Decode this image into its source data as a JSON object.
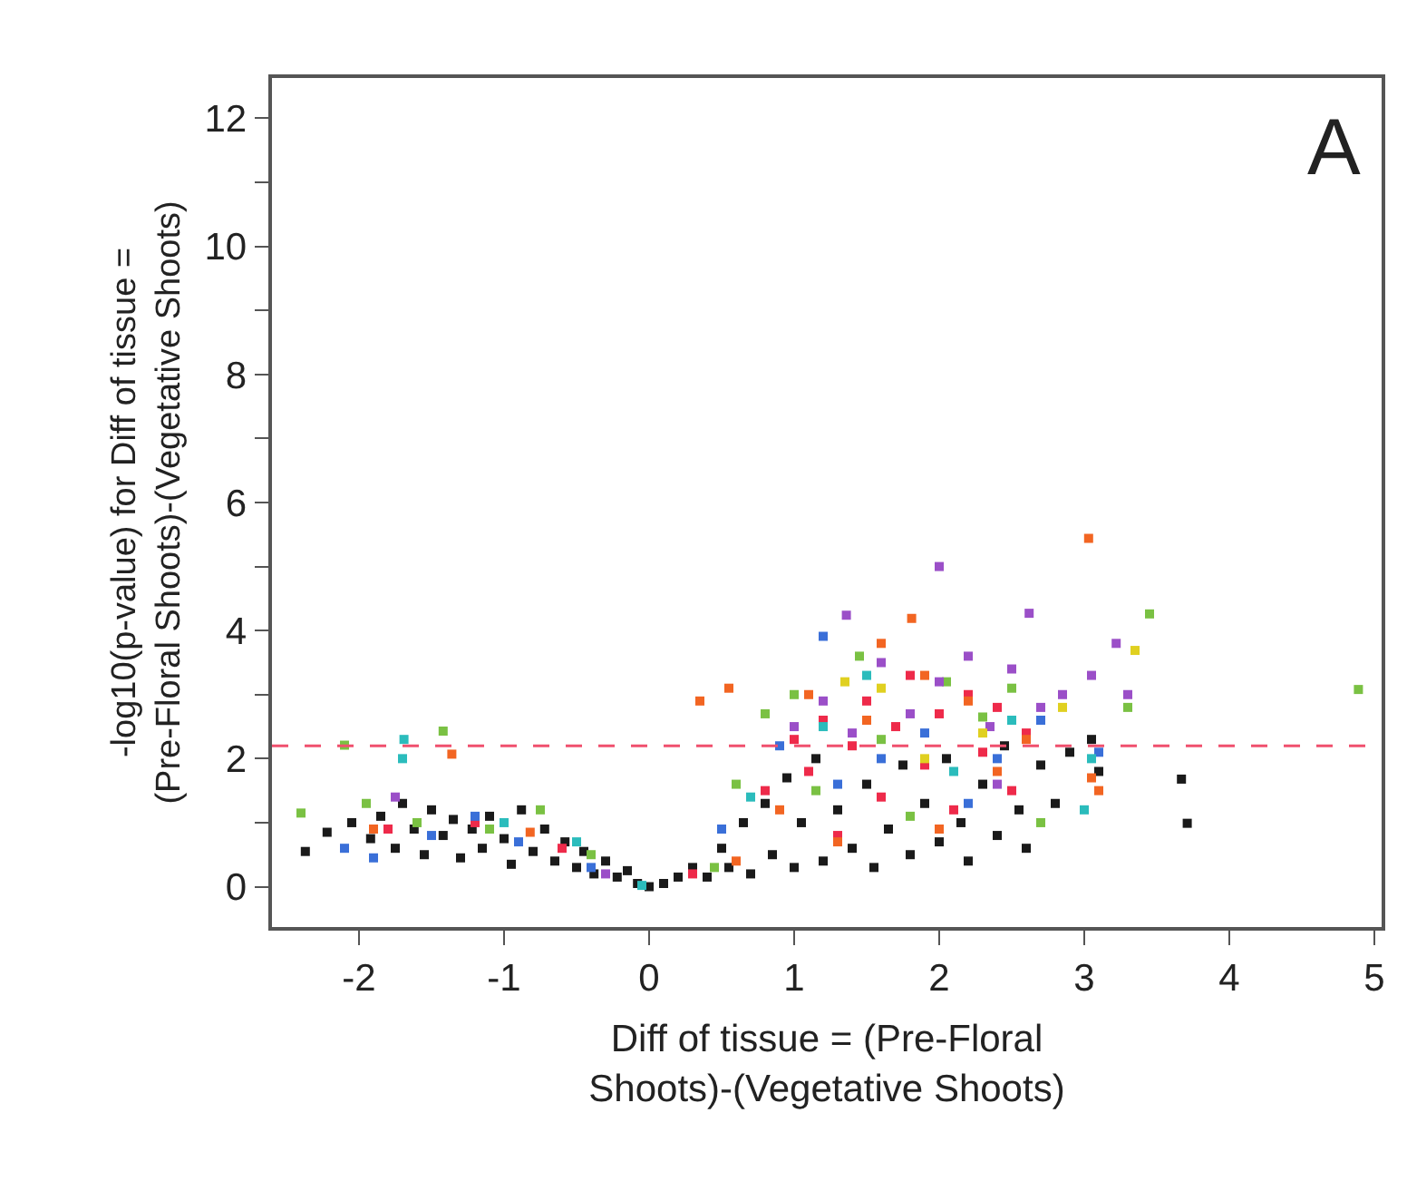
{
  "chart_data": {
    "type": "scatter",
    "xlabel": "Diff of tissue = (Pre-Floral\nShoots)-(Vegetative Shoots)",
    "ylabel": "-log10(p-value) for Diff of tissue =\n(Pre-Floral Shoots)-(Vegetative Shoots)",
    "annotations": [
      "A"
    ],
    "marker": "square",
    "xlim": [
      -2.6,
      5.05
    ],
    "ylim": [
      -0.63,
      12.63
    ],
    "xticks": [
      -2,
      -1,
      0,
      1,
      2,
      3,
      4,
      5
    ],
    "yticks": [
      0,
      {
        "value": 1,
        "label": null
      },
      2,
      {
        "value": 3,
        "label": null
      },
      4,
      {
        "value": 5,
        "label": null
      },
      6,
      {
        "value": 7,
        "label": null
      },
      8,
      {
        "value": 9,
        "label": null
      },
      10,
      {
        "value": 11,
        "label": null
      },
      12
    ],
    "ref_lines": [
      {
        "axis": "y",
        "value": 2.2,
        "color": "#f0506e",
        "line_style": "dashed"
      }
    ],
    "series": [
      {
        "color": "#1a1a1a",
        "x": [
          -2.37,
          -2.22,
          -2.05,
          -1.92,
          -1.85,
          -1.75,
          -1.7,
          -1.62,
          -1.55,
          -1.5,
          -1.42,
          -1.35,
          -1.3,
          -1.22,
          -1.15,
          -1.1,
          -1.0,
          -0.95,
          -0.88,
          -0.8,
          -0.72,
          -0.65,
          -0.58,
          -0.5,
          -0.45,
          -0.38,
          -0.3,
          -0.22,
          -0.15,
          -0.08,
          0.0,
          0.1,
          0.2,
          0.3,
          0.4,
          0.5,
          0.55,
          0.65,
          0.7,
          0.8,
          0.85,
          0.95,
          1.0,
          1.05,
          1.15,
          1.2,
          1.3,
          1.4,
          1.5,
          1.55,
          1.65,
          1.75,
          1.8,
          1.9,
          2.0,
          2.05,
          2.15,
          2.2,
          2.3,
          2.4,
          2.45,
          2.55,
          2.6,
          2.7,
          2.8,
          2.9,
          3.05,
          3.1,
          3.67,
          3.71
        ],
        "values": [
          0.55,
          0.85,
          1.0,
          0.75,
          1.1,
          0.6,
          1.3,
          0.9,
          0.5,
          1.2,
          0.8,
          1.05,
          0.45,
          0.9,
          0.6,
          1.1,
          0.75,
          0.35,
          1.2,
          0.55,
          0.9,
          0.4,
          0.7,
          0.3,
          0.55,
          0.2,
          0.4,
          0.15,
          0.25,
          0.05,
          0.0,
          0.05,
          0.15,
          0.3,
          0.15,
          0.6,
          0.3,
          1.0,
          0.2,
          1.3,
          0.5,
          1.7,
          0.3,
          1.0,
          2.0,
          0.4,
          1.2,
          0.6,
          1.6,
          0.3,
          0.9,
          1.9,
          0.5,
          1.3,
          0.7,
          2.0,
          1.0,
          0.4,
          1.6,
          0.8,
          2.2,
          1.2,
          0.6,
          1.9,
          1.3,
          2.1,
          2.3,
          1.8,
          1.68,
          0.99
        ]
      },
      {
        "color": "#ee2a4a",
        "x": [
          -1.8,
          -1.2,
          -0.6,
          0.3,
          0.8,
          1.0,
          1.1,
          1.2,
          1.3,
          1.4,
          1.5,
          1.6,
          1.7,
          1.8,
          1.9,
          2.0,
          2.1,
          2.2,
          2.3,
          2.4,
          2.5,
          2.6
        ],
        "values": [
          0.9,
          1.0,
          0.6,
          0.2,
          1.5,
          2.3,
          1.8,
          2.6,
          0.8,
          2.2,
          2.9,
          1.4,
          2.5,
          3.3,
          1.9,
          2.7,
          1.2,
          3.0,
          2.1,
          2.8,
          1.5,
          2.4
        ]
      },
      {
        "color": "#f26522",
        "x": [
          -1.36,
          -1.9,
          -0.82,
          0.35,
          0.55,
          0.6,
          0.9,
          1.1,
          1.3,
          1.5,
          1.6,
          1.81,
          1.9,
          2.0,
          2.2,
          2.4,
          2.6,
          3.03,
          3.05,
          3.1
        ],
        "values": [
          2.07,
          0.9,
          0.85,
          2.9,
          3.1,
          0.4,
          1.2,
          3.0,
          0.7,
          2.6,
          3.8,
          4.19,
          3.3,
          0.9,
          2.9,
          1.8,
          2.3,
          5.44,
          1.7,
          1.5
        ]
      },
      {
        "color": "#7ac143",
        "x": [
          -2.4,
          -2.1,
          -1.42,
          -1.95,
          -1.6,
          -1.1,
          -0.75,
          -0.4,
          0.45,
          0.6,
          0.8,
          1.0,
          1.15,
          1.45,
          1.6,
          1.8,
          2.05,
          2.3,
          2.5,
          2.7,
          3.45,
          3.3,
          4.89
        ],
        "values": [
          1.15,
          2.21,
          2.43,
          1.3,
          1.0,
          0.9,
          1.2,
          0.5,
          0.3,
          1.6,
          2.7,
          3.0,
          1.5,
          3.6,
          2.3,
          1.1,
          3.2,
          2.65,
          3.1,
          1.0,
          4.26,
          2.8,
          3.08
        ]
      },
      {
        "color": "#3a6fd8",
        "x": [
          -2.1,
          -1.9,
          -1.5,
          -1.2,
          -0.9,
          -0.4,
          0.5,
          0.9,
          1.2,
          1.3,
          1.6,
          1.9,
          2.2,
          2.4,
          2.7,
          3.1
        ],
        "values": [
          0.6,
          0.45,
          0.8,
          1.1,
          0.7,
          0.3,
          0.9,
          2.2,
          3.91,
          1.6,
          2.0,
          2.4,
          1.3,
          2.0,
          2.6,
          2.1
        ]
      },
      {
        "color": "#9b4fc8",
        "x": [
          -1.75,
          -0.3,
          1.0,
          1.2,
          1.36,
          1.4,
          1.6,
          1.8,
          2.0,
          2.0,
          2.2,
          2.35,
          2.5,
          2.62,
          2.7,
          2.85,
          3.05,
          3.22,
          3.3,
          2.4
        ],
        "values": [
          1.4,
          0.2,
          2.5,
          2.9,
          4.24,
          2.4,
          3.5,
          2.7,
          5.0,
          3.2,
          3.6,
          2.5,
          3.4,
          4.27,
          2.8,
          3.0,
          3.3,
          3.8,
          3.0,
          1.6
        ]
      },
      {
        "color": "#2bbcbc",
        "x": [
          -1.69,
          -1.7,
          -1.0,
          -0.5,
          -0.05,
          0.7,
          1.2,
          1.5,
          2.1,
          2.5,
          3.0,
          3.05
        ],
        "values": [
          2.3,
          2.0,
          1.0,
          0.7,
          0.02,
          1.4,
          2.5,
          3.3,
          1.8,
          2.6,
          1.2,
          2.0
        ]
      },
      {
        "color": "#e0d020",
        "x": [
          1.35,
          1.6,
          2.3,
          2.85,
          3.35,
          1.9
        ],
        "values": [
          3.2,
          3.1,
          2.4,
          2.8,
          3.69,
          2.0
        ]
      }
    ]
  }
}
